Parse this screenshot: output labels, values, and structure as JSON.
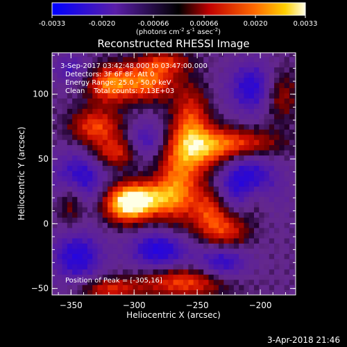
{
  "colorbar": {
    "ticks": [
      "-0.0033",
      "-0.0020",
      "-0.00066",
      "0.00066",
      "0.0020",
      "0.0033"
    ],
    "tick_values": [
      -0.0033,
      -0.002,
      -0.00066,
      0.00066,
      0.002,
      0.0033
    ],
    "range": [
      -0.0033,
      0.0033
    ],
    "units_main": "(photons cm",
    "units_sup1": "-2",
    "units_mid1": " s",
    "units_sup2": "-1",
    "units_mid2": " asec",
    "units_sup3": "-2",
    "units_end": ")"
  },
  "chart_data": {
    "type": "heatmap",
    "title": "Reconstructed RHESSI Image",
    "xlabel": "Heliocentric X (arcsec)",
    "ylabel": "Heliocentric Y (arcsec)",
    "xlim": [
      -365,
      -172
    ],
    "ylim": [
      -55,
      132
    ],
    "xticks": [
      -350,
      -300,
      -250,
      -200
    ],
    "yticks": [
      -50,
      0,
      50,
      100
    ],
    "xtick_labels": [
      "−350",
      "−300",
      "−250",
      "−200"
    ],
    "ytick_labels": [
      "−50",
      "0",
      "50",
      "100"
    ],
    "info_lines": [
      "3-Sep-2017 03:42:48.000 to 03:47:00.000",
      "Detectors: 3F 6F 8F, Att 0",
      "Energy Range: 25.0 - 50.0 keV",
      "Clean    Total counts: 7.13E+03"
    ],
    "peak_label": "Position of Peak = [-305,16]",
    "peak": {
      "x": -305,
      "y": 16
    },
    "sources": [
      {
        "x": -305,
        "y": 16,
        "amp": 1.0,
        "sx": 13,
        "sy": 10
      },
      {
        "x": -285,
        "y": 20,
        "amp": 0.55,
        "sx": 14,
        "sy": 9
      },
      {
        "x": -265,
        "y": 32,
        "amp": 0.6,
        "sx": 12,
        "sy": 22
      },
      {
        "x": -245,
        "y": 58,
        "amp": 0.55,
        "sx": 16,
        "sy": 12
      },
      {
        "x": -215,
        "y": 62,
        "amp": 0.5,
        "sx": 22,
        "sy": 8
      },
      {
        "x": -255,
        "y": 80,
        "amp": 0.5,
        "sx": 10,
        "sy": 18
      },
      {
        "x": -290,
        "y": 110,
        "amp": 0.65,
        "sx": 16,
        "sy": 10
      },
      {
        "x": -320,
        "y": 108,
        "amp": 0.6,
        "sx": 12,
        "sy": 10
      },
      {
        "x": -330,
        "y": 75,
        "amp": 0.55,
        "sx": 14,
        "sy": 10
      },
      {
        "x": -315,
        "y": 55,
        "amp": 0.45,
        "sx": 12,
        "sy": 8
      },
      {
        "x": -240,
        "y": 10,
        "amp": 0.5,
        "sx": 10,
        "sy": 14
      },
      {
        "x": -225,
        "y": -5,
        "amp": 0.45,
        "sx": 12,
        "sy": 10
      },
      {
        "x": -205,
        "y": 20,
        "amp": 0.45,
        "sx": 10,
        "sy": 12
      },
      {
        "x": -260,
        "y": -45,
        "amp": 0.55,
        "sx": 25,
        "sy": 8
      },
      {
        "x": -320,
        "y": -50,
        "amp": 0.45,
        "sx": 16,
        "sy": 6
      },
      {
        "x": -350,
        "y": 20,
        "amp": 0.4,
        "sx": 8,
        "sy": 14
      },
      {
        "x": -185,
        "y": 100,
        "amp": 0.4,
        "sx": 10,
        "sy": 14
      },
      {
        "x": -275,
        "y": 125,
        "amp": 0.4,
        "sx": 14,
        "sy": 6
      }
    ],
    "negatives": [
      {
        "x": -345,
        "y": 35,
        "amp": 0.55,
        "sx": 14,
        "sy": 14
      },
      {
        "x": -210,
        "y": 30,
        "amp": 0.7,
        "sx": 16,
        "sy": 16
      },
      {
        "x": -280,
        "y": -20,
        "amp": 0.55,
        "sx": 16,
        "sy": 10
      },
      {
        "x": -345,
        "y": -25,
        "amp": 0.5,
        "sx": 14,
        "sy": 14
      },
      {
        "x": -205,
        "y": 105,
        "amp": 0.5,
        "sx": 14,
        "sy": 14
      },
      {
        "x": -230,
        "y": -30,
        "amp": 0.45,
        "sx": 14,
        "sy": 10
      },
      {
        "x": -290,
        "y": 65,
        "amp": 0.35,
        "sx": 10,
        "sy": 10
      },
      {
        "x": -350,
        "y": 120,
        "amp": 0.3,
        "sx": 10,
        "sy": 8
      }
    ]
  },
  "footer": {
    "date": "3-Apr-2018 21:46"
  }
}
